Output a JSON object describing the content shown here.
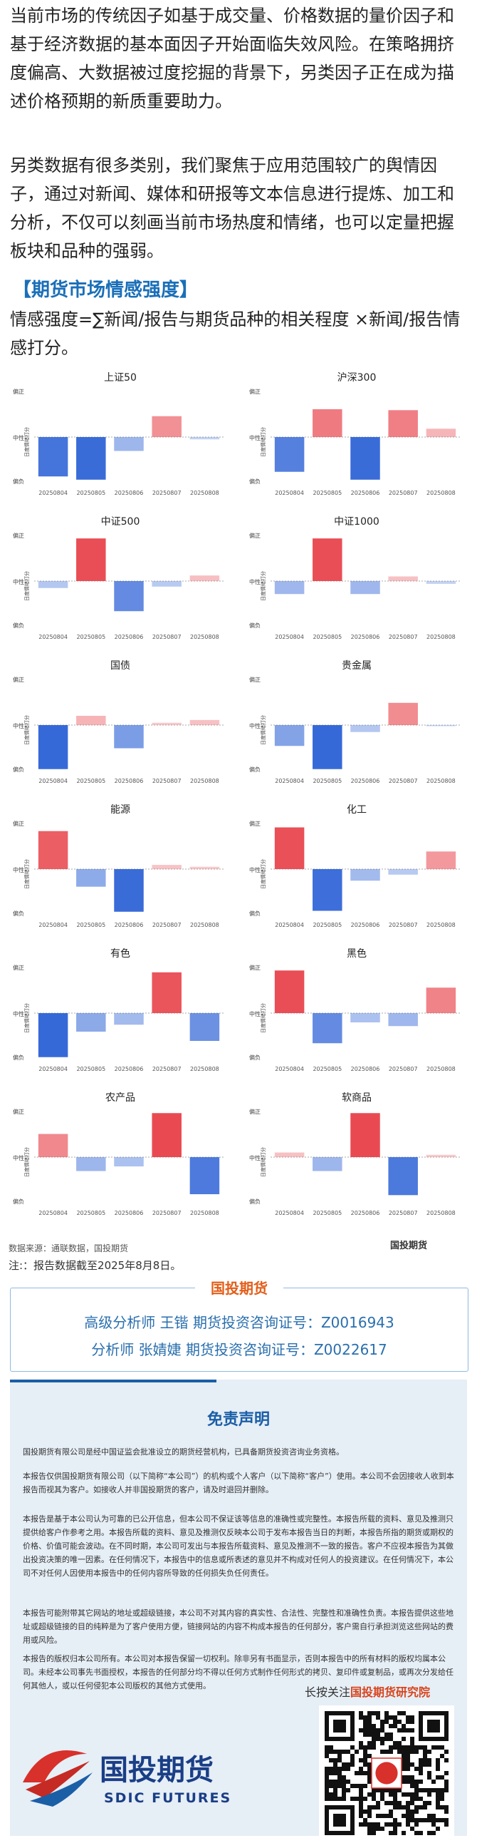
{
  "intro": {
    "para1": "当前市场的传统因子如基于成交量、价格数据的量价因子和基于经济数据的基本面因子开始面临失效风险。在策略拥挤度偏高、大数据被过度挖掘的背景下，另类因子正在成为描述价格预期的新质重要助力。",
    "para2": "另类数据有很多类别，我们聚焦于应用范围较广的舆情因子，通过对新闻、媒体和研报等文本信息进行提炼、加工和分析，不仅可以刻画当前市场热度和情绪，也可以定量把握板块和品种的强弱。"
  },
  "section": {
    "title": "【期货市场情感强度】",
    "formula": "情感强度=∑新闻/报告与期货品种的相关程度 ×新闻/报告情感打分。"
  },
  "chart_data": [
    {
      "type": "bar",
      "title": "上证50",
      "ylabel": "日度情绪打分",
      "y_ticks": [
        "偏正",
        "中性",
        "偏负"
      ],
      "ylim": [
        -1,
        1
      ],
      "categories": [
        "20250804",
        "20250805",
        "20250806",
        "20250807",
        "20250808"
      ],
      "values": [
        -0.85,
        -0.92,
        -0.3,
        0.45,
        -0.05
      ]
    },
    {
      "type": "bar",
      "title": "沪深300",
      "ylabel": "日度情绪打分",
      "y_ticks": [
        "偏正",
        "中性",
        "偏负"
      ],
      "ylim": [
        -1,
        1
      ],
      "categories": [
        "20250804",
        "20250805",
        "20250806",
        "20250807",
        "20250808"
      ],
      "values": [
        -0.75,
        0.6,
        -0.92,
        0.58,
        0.18
      ]
    },
    {
      "type": "bar",
      "title": "中证500",
      "ylabel": "日度情绪打分",
      "y_ticks": [
        "偏正",
        "中性",
        "偏负"
      ],
      "ylim": [
        -1,
        1
      ],
      "categories": [
        "20250804",
        "20250805",
        "20250806",
        "20250807",
        "20250808"
      ],
      "values": [
        -0.15,
        0.92,
        -0.65,
        -0.12,
        0.12
      ]
    },
    {
      "type": "bar",
      "title": "中证1000",
      "ylabel": "日度情绪打分",
      "y_ticks": [
        "偏正",
        "中性",
        "偏负"
      ],
      "ylim": [
        -1,
        1
      ],
      "categories": [
        "20250804",
        "20250805",
        "20250806",
        "20250807",
        "20250808"
      ],
      "values": [
        -0.28,
        0.92,
        -0.28,
        0.1,
        -0.06
      ]
    },
    {
      "type": "bar",
      "title": "国债",
      "ylabel": "日度情绪打分",
      "y_ticks": [
        "偏正",
        "中性",
        "偏负"
      ],
      "ylim": [
        -1,
        1
      ],
      "categories": [
        "20250804",
        "20250805",
        "20250806",
        "20250807",
        "20250808"
      ],
      "values": [
        -0.95,
        0.2,
        -0.5,
        0.05,
        0.11
      ]
    },
    {
      "type": "bar",
      "title": "贵金属",
      "ylabel": "日度情绪打分",
      "y_ticks": [
        "偏正",
        "中性",
        "偏负"
      ],
      "ylim": [
        -1,
        1
      ],
      "categories": [
        "20250804",
        "20250805",
        "20250806",
        "20250807",
        "20250808"
      ],
      "values": [
        -0.45,
        -0.95,
        -0.15,
        0.48,
        -0.02
      ]
    },
    {
      "type": "bar",
      "title": "能源",
      "ylabel": "日度情绪打分",
      "y_ticks": [
        "偏正",
        "中性",
        "偏负"
      ],
      "ylim": [
        -1,
        1
      ],
      "categories": [
        "20250804",
        "20250805",
        "20250806",
        "20250807",
        "20250808"
      ],
      "values": [
        0.82,
        -0.38,
        -0.92,
        0.09,
        0.05
      ]
    },
    {
      "type": "bar",
      "title": "化工",
      "ylabel": "日度情绪打分",
      "y_ticks": [
        "偏正",
        "中性",
        "偏负"
      ],
      "ylim": [
        -1,
        1
      ],
      "categories": [
        "20250804",
        "20250805",
        "20250806",
        "20250807",
        "20250808"
      ],
      "values": [
        0.9,
        -0.9,
        -0.25,
        -0.12,
        0.38
      ]
    },
    {
      "type": "bar",
      "title": "有色",
      "ylabel": "日度情绪打分",
      "y_ticks": [
        "偏正",
        "中性",
        "偏负"
      ],
      "ylim": [
        -1,
        1
      ],
      "categories": [
        "20250804",
        "20250805",
        "20250806",
        "20250807",
        "20250808"
      ],
      "values": [
        -0.95,
        -0.4,
        -0.25,
        0.88,
        -0.6
      ]
    },
    {
      "type": "bar",
      "title": "黑色",
      "ylabel": "日度情绪打分",
      "y_ticks": [
        "偏正",
        "中性",
        "偏负"
      ],
      "ylim": [
        -1,
        1
      ],
      "categories": [
        "20250804",
        "20250805",
        "20250806",
        "20250807",
        "20250808"
      ],
      "values": [
        0.92,
        -0.65,
        -0.2,
        -0.28,
        0.55
      ]
    },
    {
      "type": "bar",
      "title": "农产品",
      "ylabel": "日度情绪打分",
      "y_ticks": [
        "偏正",
        "中性",
        "偏负"
      ],
      "ylim": [
        -1,
        1
      ],
      "categories": [
        "20250804",
        "20250805",
        "20250806",
        "20250807",
        "20250808"
      ],
      "values": [
        0.5,
        -0.3,
        -0.2,
        0.95,
        -0.8
      ]
    },
    {
      "type": "bar",
      "title": "软商品",
      "ylabel": "日度情绪打分",
      "y_ticks": [
        "偏正",
        "中性",
        "偏负"
      ],
      "ylim": [
        -1,
        1
      ],
      "categories": [
        "20250804",
        "20250805",
        "20250806",
        "20250807",
        "20250808"
      ],
      "values": [
        0.1,
        -0.3,
        0.95,
        -0.82,
        0.05
      ]
    }
  ],
  "colors": {
    "positive": "#e8434b",
    "negative": "#2e63d6",
    "axis": "#999999",
    "accent": "#1a6fb8"
  },
  "footer": {
    "source": "数据来源：通联数据，国投期货",
    "note": "注:：报告数据截至2025年8月8日。",
    "logo_text": "国投期货",
    "logo_sub": "SDIC FUTURES"
  },
  "analysts": {
    "tag": "国投期货",
    "line1": "高级分析师  王锴  期货投资咨询证号：Z0016943",
    "line2": "分析师  张婧婕  期货投资咨询证号：Z0022617"
  },
  "disclaimer": {
    "title": "免责声明",
    "p1": "国投期货有限公司是经中国证监会批准设立的期货经营机构，已具备期货投资咨询业务资格。",
    "p2": "本报告仅供国投期货有限公司（以下简称“本公司”）的机构或个人客户（以下简称“客户”）使用。本公司不会因接收人收到本报告而视其为客户。如接收人并非国投期货的客户，请及时退回并删除。",
    "p3": "本报告是基于本公司认为可靠的已公开信息，但本公司不保证该等信息的准确性或完整性。本报告所载的资料、意见及推测只提供给客户作参考之用。本报告所载的资料、意见及推测仅反映本公司于发布本报告当日的判断，本报告所指的期货或期权的价格、价值可能会波动。在不同时期，本公司可发出与本报告所载资料、意见及推测不一致的报告。客户不应视本报告为其做出投资决策的唯一因素。在任何情况下，本报告中的信息或所表述的意见并不构成对任何人的投资建议。在任何情况下，本公司不对任何人因使用本报告中的任何内容所导致的任何损失负任何责任。",
    "p4": "本报告可能附带其它网站的地址或超级链接，本公司不对其内容的真实性、合法性、完整性和准确性负责。本报告提供这些地址或超级链接的目的纯粹是为了客户使用方便，链接网站的内容不构成本报告的任何部分，客户需自行承担浏览这些网站的费用或风险。",
    "p5": "本报告的版权归本公司所有。本公司对本报告保留一切权利。除非另有书面显示，否则本报告中的所有材料的版权均属本公司。未经本公司事先书面授权，本报告的任何部分均不得以任何方式制作任何形式的拷贝、复印件或复制品，或再次分发给任何其他人，或以任何侵犯本公司版权的其他方式使用。"
  },
  "follow": {
    "prefix": "长按关注",
    "name": "国投期货研究院"
  },
  "brand": {
    "cn": "国投期货",
    "en": "SDIC FUTURES"
  }
}
